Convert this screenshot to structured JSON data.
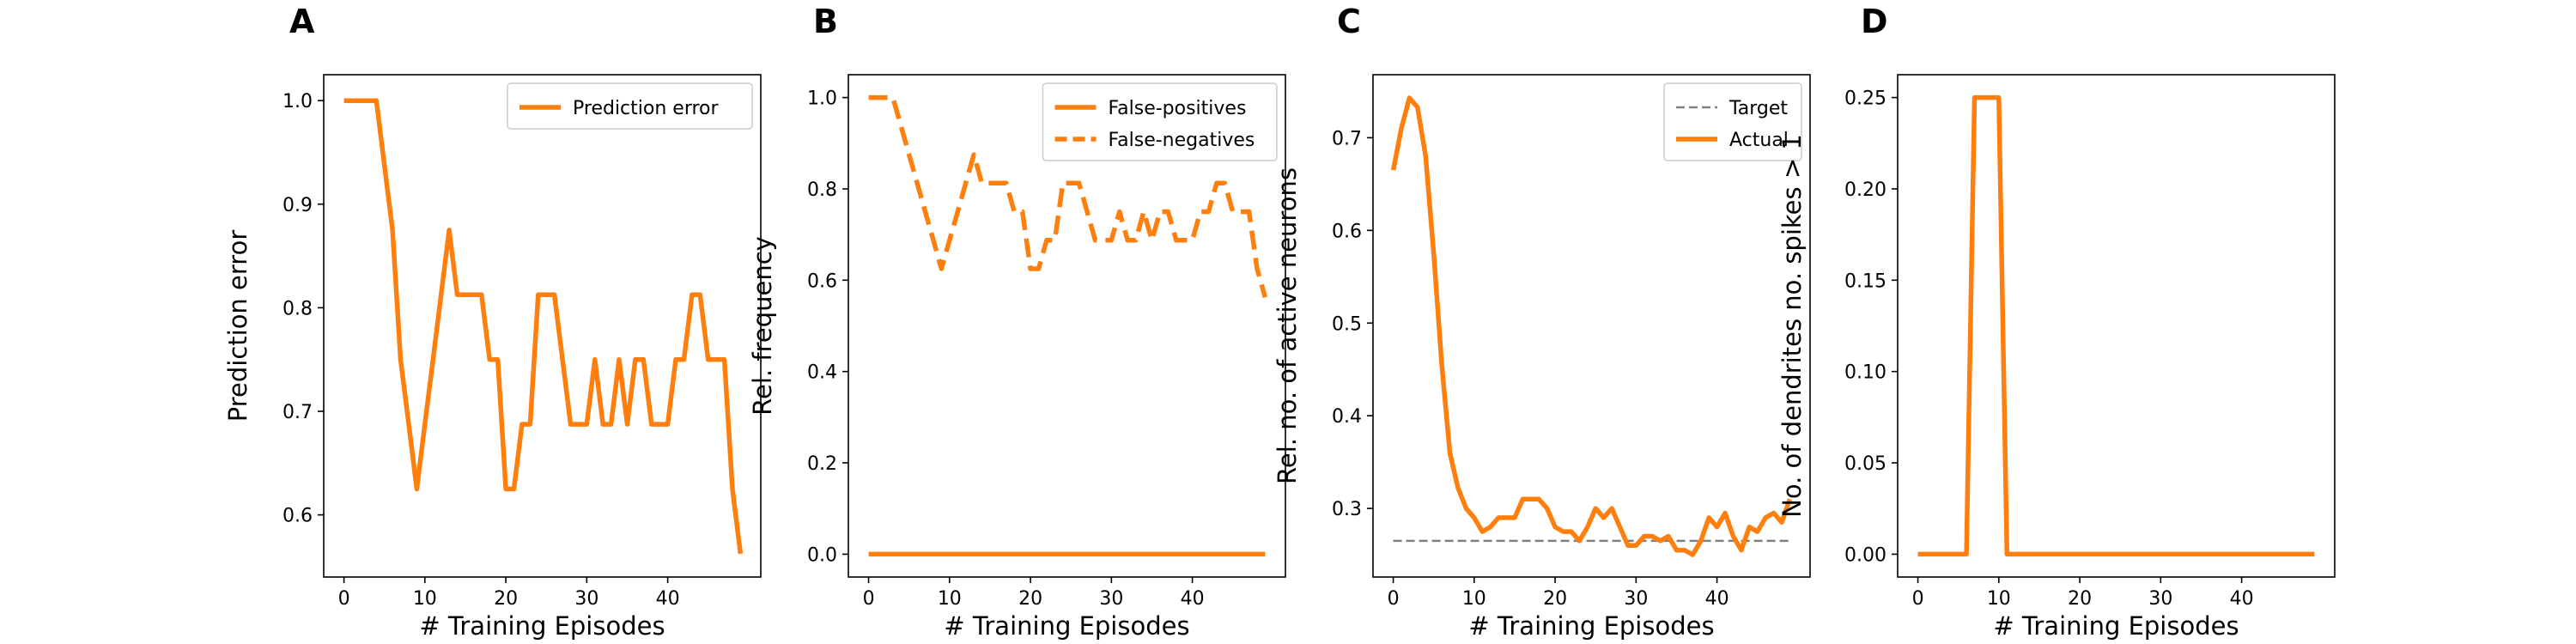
{
  "colors": {
    "orange": "#ff7f0e",
    "target": "#808080"
  },
  "panels": [
    {
      "letter": "A",
      "xlabel": "# Training Episodes",
      "ylabel": "Prediction error"
    },
    {
      "letter": "B",
      "xlabel": "# Training Episodes",
      "ylabel": "Rel. frequency"
    },
    {
      "letter": "C",
      "xlabel": "# Training Episodes",
      "ylabel": "Rel. no. of active neurons"
    },
    {
      "letter": "D",
      "xlabel": "# Training Episodes",
      "ylabel": "No. of dendrites no. spikes > 1"
    }
  ],
  "chart_data": [
    {
      "type": "line",
      "title": "",
      "xlabel": "# Training Episodes",
      "ylabel": "Prediction error",
      "xlim": [
        -2.5,
        51.5
      ],
      "ylim": [
        0.54,
        1.025
      ],
      "xticks": [
        0,
        10,
        20,
        30,
        40
      ],
      "yticks": [
        0.6,
        0.7,
        0.8,
        0.9,
        1.0
      ],
      "ytick_labels": [
        "0.6",
        "0.7",
        "0.8",
        "0.9",
        "1.0"
      ],
      "legend": "top-right",
      "x": [
        0,
        1,
        2,
        3,
        4,
        5,
        6,
        7,
        8,
        9,
        10,
        11,
        12,
        13,
        14,
        15,
        16,
        17,
        18,
        19,
        20,
        21,
        22,
        23,
        24,
        25,
        26,
        27,
        28,
        29,
        30,
        31,
        32,
        33,
        34,
        35,
        36,
        37,
        38,
        39,
        40,
        41,
        42,
        43,
        44,
        45,
        46,
        47,
        48,
        49
      ],
      "series": [
        {
          "name": "Prediction error",
          "style": "solid",
          "values": [
            1.0,
            1.0,
            1.0,
            1.0,
            1.0,
            0.9375,
            0.875,
            0.75,
            0.6875,
            0.625,
            0.6875,
            0.75,
            0.8125,
            0.875,
            0.8125,
            0.8125,
            0.8125,
            0.8125,
            0.75,
            0.75,
            0.625,
            0.625,
            0.6875,
            0.6875,
            0.8125,
            0.8125,
            0.8125,
            0.75,
            0.6875,
            0.6875,
            0.6875,
            0.75,
            0.6875,
            0.6875,
            0.75,
            0.6875,
            0.75,
            0.75,
            0.6875,
            0.6875,
            0.6875,
            0.75,
            0.75,
            0.8125,
            0.8125,
            0.75,
            0.75,
            0.75,
            0.625,
            0.5625
          ]
        }
      ]
    },
    {
      "type": "line",
      "title": "",
      "xlabel": "# Training Episodes",
      "ylabel": "Rel. frequency",
      "xlim": [
        -2.5,
        51.5
      ],
      "ylim": [
        -0.05,
        1.05
      ],
      "xticks": [
        0,
        10,
        20,
        30,
        40
      ],
      "yticks": [
        0.0,
        0.2,
        0.4,
        0.6,
        0.8,
        1.0
      ],
      "ytick_labels": [
        "0.0",
        "0.2",
        "0.4",
        "0.6",
        "0.8",
        "1.0"
      ],
      "legend": "top-right",
      "x": [
        0,
        1,
        2,
        3,
        4,
        5,
        6,
        7,
        8,
        9,
        10,
        11,
        12,
        13,
        14,
        15,
        16,
        17,
        18,
        19,
        20,
        21,
        22,
        23,
        24,
        25,
        26,
        27,
        28,
        29,
        30,
        31,
        32,
        33,
        34,
        35,
        36,
        37,
        38,
        39,
        40,
        41,
        42,
        43,
        44,
        45,
        46,
        47,
        48,
        49
      ],
      "series": [
        {
          "name": "False-positives",
          "style": "solid",
          "values": [
            0,
            0,
            0,
            0,
            0,
            0,
            0,
            0,
            0,
            0,
            0,
            0,
            0,
            0,
            0,
            0,
            0,
            0,
            0,
            0,
            0,
            0,
            0,
            0,
            0,
            0,
            0,
            0,
            0,
            0,
            0,
            0,
            0,
            0,
            0,
            0,
            0,
            0,
            0,
            0,
            0,
            0,
            0,
            0,
            0,
            0,
            0,
            0,
            0,
            0
          ]
        },
        {
          "name": "False-negatives",
          "style": "dashed",
          "values": [
            1.0,
            1.0,
            1.0,
            1.0,
            0.9375,
            0.875,
            0.8125,
            0.75,
            0.6875,
            0.625,
            0.6875,
            0.75,
            0.8125,
            0.875,
            0.8125,
            0.8125,
            0.8125,
            0.8125,
            0.75,
            0.75,
            0.625,
            0.625,
            0.6875,
            0.6875,
            0.8125,
            0.8125,
            0.8125,
            0.75,
            0.6875,
            0.6875,
            0.6875,
            0.75,
            0.6875,
            0.6875,
            0.75,
            0.6875,
            0.75,
            0.75,
            0.6875,
            0.6875,
            0.6875,
            0.75,
            0.75,
            0.8125,
            0.8125,
            0.75,
            0.75,
            0.75,
            0.625,
            0.5625
          ]
        }
      ]
    },
    {
      "type": "line",
      "title": "",
      "xlabel": "# Training Episodes",
      "ylabel": "Rel. no. of active neurons",
      "xlim": [
        -2.5,
        51.5
      ],
      "ylim": [
        0.226,
        0.768
      ],
      "xticks": [
        0,
        10,
        20,
        30,
        40
      ],
      "yticks": [
        0.3,
        0.4,
        0.5,
        0.6,
        0.7
      ],
      "ytick_labels": [
        "0.3",
        "0.4",
        "0.5",
        "0.6",
        "0.7"
      ],
      "legend": "top-right",
      "x": [
        0,
        1,
        2,
        3,
        4,
        5,
        6,
        7,
        8,
        9,
        10,
        11,
        12,
        13,
        14,
        15,
        16,
        17,
        18,
        19,
        20,
        21,
        22,
        23,
        24,
        25,
        26,
        27,
        28,
        29,
        30,
        31,
        32,
        33,
        34,
        35,
        36,
        37,
        38,
        39,
        40,
        41,
        42,
        43,
        44,
        45,
        46,
        47,
        48,
        49
      ],
      "series": [
        {
          "name": "Target",
          "style": "dashed",
          "values": [
            0.265,
            0.265,
            0.265,
            0.265,
            0.265,
            0.265,
            0.265,
            0.265,
            0.265,
            0.265,
            0.265,
            0.265,
            0.265,
            0.265,
            0.265,
            0.265,
            0.265,
            0.265,
            0.265,
            0.265,
            0.265,
            0.265,
            0.265,
            0.265,
            0.265,
            0.265,
            0.265,
            0.265,
            0.265,
            0.265,
            0.265,
            0.265,
            0.265,
            0.265,
            0.265,
            0.265,
            0.265,
            0.265,
            0.265,
            0.265,
            0.265,
            0.265,
            0.265,
            0.265,
            0.265,
            0.265,
            0.265,
            0.265,
            0.265,
            0.265
          ]
        },
        {
          "name": "Actual",
          "style": "solid",
          "values": [
            0.665,
            0.71,
            0.743,
            0.733,
            0.68,
            0.575,
            0.455,
            0.36,
            0.322,
            0.3,
            0.29,
            0.275,
            0.28,
            0.29,
            0.29,
            0.29,
            0.31,
            0.31,
            0.31,
            0.3,
            0.28,
            0.275,
            0.275,
            0.265,
            0.28,
            0.3,
            0.29,
            0.3,
            0.28,
            0.26,
            0.26,
            0.27,
            0.27,
            0.265,
            0.27,
            0.255,
            0.255,
            0.25,
            0.265,
            0.29,
            0.28,
            0.295,
            0.27,
            0.255,
            0.28,
            0.275,
            0.29,
            0.295,
            0.285,
            0.31
          ]
        }
      ]
    },
    {
      "type": "line",
      "title": "",
      "xlabel": "# Training Episodes",
      "ylabel": "No. of dendrites no. spikes > 1",
      "xlim": [
        -2.5,
        51.5
      ],
      "ylim": [
        -0.0125,
        0.2625
      ],
      "xticks": [
        0,
        10,
        20,
        30,
        40
      ],
      "yticks": [
        0.0,
        0.05,
        0.1,
        0.15,
        0.2,
        0.25
      ],
      "ytick_labels": [
        "0.00",
        "0.05",
        "0.10",
        "0.15",
        "0.20",
        "0.25"
      ],
      "legend": "none",
      "x": [
        0,
        1,
        2,
        3,
        4,
        5,
        6,
        7,
        8,
        9,
        10,
        11,
        12,
        13,
        14,
        15,
        16,
        17,
        18,
        19,
        20,
        21,
        22,
        23,
        24,
        25,
        26,
        27,
        28,
        29,
        30,
        31,
        32,
        33,
        34,
        35,
        36,
        37,
        38,
        39,
        40,
        41,
        42,
        43,
        44,
        45,
        46,
        47,
        48,
        49
      ],
      "series": [
        {
          "name": "",
          "style": "solid",
          "values": [
            0,
            0,
            0,
            0,
            0,
            0,
            0,
            0.25,
            0.25,
            0.25,
            0.25,
            0,
            0,
            0,
            0,
            0,
            0,
            0,
            0,
            0,
            0,
            0,
            0,
            0,
            0,
            0,
            0,
            0,
            0,
            0,
            0,
            0,
            0,
            0,
            0,
            0,
            0,
            0,
            0,
            0,
            0,
            0,
            0,
            0,
            0,
            0,
            0,
            0,
            0,
            0
          ]
        }
      ]
    }
  ]
}
